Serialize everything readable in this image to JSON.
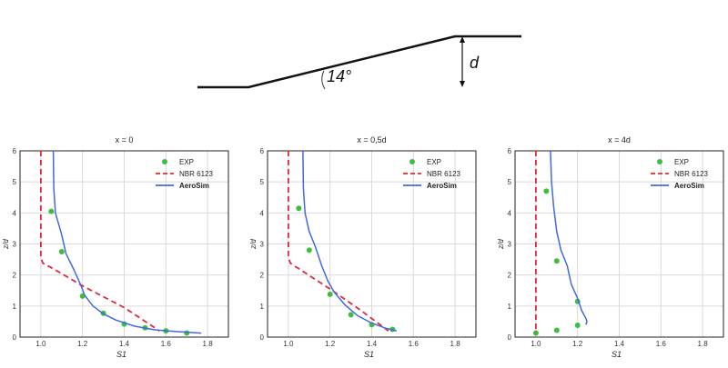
{
  "figure": {
    "slope_angle_label": "14°",
    "height_label": "d"
  },
  "chart_data": [
    {
      "type": "line",
      "title": "x = 0",
      "xlabel": "S1",
      "ylabel": "z/d",
      "xlim": [
        0.9,
        1.9
      ],
      "ylim": [
        0,
        6
      ],
      "xticks": [
        "1.0",
        "1.2",
        "1.4",
        "1.6",
        "1.8"
      ],
      "yticks": [
        "0",
        "1",
        "2",
        "3",
        "4",
        "5",
        "6"
      ],
      "grid": true,
      "legend": "top-right",
      "series": [
        {
          "name": "EXP",
          "style": "points",
          "color": "#3dbf3d",
          "x": [
            1.05,
            1.1,
            1.2,
            1.3,
            1.4,
            1.5,
            1.6,
            1.7
          ],
          "y": [
            4.05,
            2.75,
            1.32,
            0.77,
            0.42,
            0.3,
            0.2,
            0.13
          ]
        },
        {
          "name": "NBR 6123",
          "style": "dashed",
          "color": "#e0283c",
          "x": [
            1.0,
            1.0,
            1.01,
            1.06,
            1.2,
            1.4,
            1.57
          ],
          "y": [
            6.0,
            2.55,
            2.38,
            2.2,
            1.65,
            0.95,
            0.2
          ]
        },
        {
          "name": "AeroSim",
          "style": "solid",
          "color": "#4169e1",
          "x": [
            1.06,
            1.062,
            1.07,
            1.1,
            1.12,
            1.16,
            1.19,
            1.21,
            1.25,
            1.3,
            1.36,
            1.45,
            1.55,
            1.65,
            1.72,
            1.77
          ],
          "y": [
            6.0,
            4.8,
            4.0,
            3.3,
            2.7,
            2.15,
            1.7,
            1.35,
            1.0,
            0.75,
            0.55,
            0.35,
            0.23,
            0.18,
            0.15,
            0.13
          ]
        }
      ]
    },
    {
      "type": "line",
      "title": "x = 0,5d",
      "xlabel": "S1",
      "ylabel": "z/d",
      "xlim": [
        0.9,
        1.9
      ],
      "ylim": [
        0,
        6
      ],
      "xticks": [
        "1.0",
        "1.2",
        "1.4",
        "1.6",
        "1.8"
      ],
      "yticks": [
        "0",
        "1",
        "2",
        "3",
        "4",
        "5",
        "6"
      ],
      "grid": true,
      "legend": "top-right",
      "series": [
        {
          "name": "EXP",
          "style": "points",
          "color": "#3dbf3d",
          "x": [
            1.05,
            1.1,
            1.2,
            1.3,
            1.4,
            1.5
          ],
          "y": [
            4.15,
            2.8,
            1.38,
            0.72,
            0.4,
            0.25
          ]
        },
        {
          "name": "NBR 6123",
          "style": "dashed",
          "color": "#e0283c",
          "x": [
            1.0,
            1.0,
            1.01,
            1.05,
            1.2,
            1.35,
            1.48
          ],
          "y": [
            6.0,
            2.55,
            2.38,
            2.2,
            1.55,
            0.85,
            0.2
          ]
        },
        {
          "name": "AeroSim",
          "style": "solid",
          "color": "#4169e1",
          "x": [
            1.07,
            1.072,
            1.08,
            1.1,
            1.13,
            1.16,
            1.19,
            1.22,
            1.27,
            1.33,
            1.4,
            1.47,
            1.52
          ],
          "y": [
            6.0,
            4.8,
            4.0,
            3.4,
            2.9,
            2.3,
            1.8,
            1.45,
            1.05,
            0.7,
            0.45,
            0.28,
            0.2
          ]
        }
      ]
    },
    {
      "type": "line",
      "title": "x = 4d",
      "xlabel": "S1",
      "ylabel": "z/d",
      "xlim": [
        0.9,
        1.9
      ],
      "ylim": [
        0,
        6
      ],
      "xticks": [
        "1.0",
        "1.2",
        "1.4",
        "1.6",
        "1.8"
      ],
      "yticks": [
        "0",
        "1",
        "2",
        "3",
        "4",
        "5",
        "6"
      ],
      "grid": true,
      "legend": "top-right",
      "series": [
        {
          "name": "EXP",
          "style": "points",
          "color": "#3dbf3d",
          "x": [
            1.05,
            1.1,
            1.2,
            1.2,
            1.1,
            1.0
          ],
          "y": [
            4.7,
            2.45,
            1.15,
            0.38,
            0.22,
            0.13
          ]
        },
        {
          "name": "NBR 6123",
          "style": "dashed",
          "color": "#e0283c",
          "x": [
            1.0,
            1.0
          ],
          "y": [
            6.0,
            0.13
          ]
        },
        {
          "name": "AeroSim",
          "style": "solid",
          "color": "#4169e1",
          "x": [
            1.07,
            1.075,
            1.085,
            1.1,
            1.12,
            1.15,
            1.17,
            1.2,
            1.22,
            1.24,
            1.245,
            1.24
          ],
          "y": [
            6.0,
            5.0,
            4.2,
            3.4,
            2.8,
            2.3,
            1.7,
            1.25,
            0.85,
            0.6,
            0.5,
            0.4
          ]
        }
      ]
    }
  ]
}
